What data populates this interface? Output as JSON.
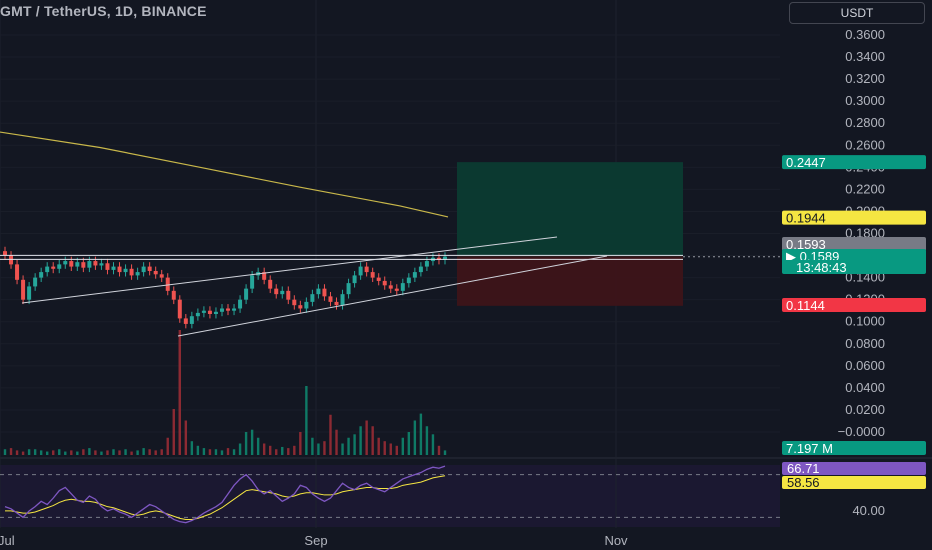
{
  "header": {
    "title": "GMT / TetherUS, 1D, BINANCE",
    "currency": "USDT"
  },
  "chart_data": {
    "type": "candlestick",
    "symbol": "GMT / TetherUS",
    "interval": "1D",
    "exchange": "BINANCE",
    "y_axis": {
      "ticks": [
        "0.3600",
        "0.3400",
        "0.3200",
        "0.3000",
        "0.2800",
        "0.2600",
        "0.2400",
        "0.2200",
        "0.2000",
        "0.1800",
        "0.1600",
        "0.1400",
        "0.1200",
        "0.1000",
        "0.0800",
        "0.0600",
        "0.0400",
        "0.0200",
        "−0.0000"
      ],
      "range": [
        0.0,
        0.37
      ]
    },
    "x_axis": {
      "labels": [
        "Jul",
        "Sep",
        "Nov"
      ]
    },
    "price_labels": [
      {
        "text": "0.2447",
        "kind": "target",
        "color": "#089981"
      },
      {
        "text": "0.1944",
        "kind": "moving_average",
        "color": "#f5e642"
      },
      {
        "text": "0.1593",
        "kind": "last_marker",
        "color": "#787b86"
      },
      {
        "text": "0.1589",
        "kind": "current",
        "color": "#089981"
      },
      {
        "text": "13:48:43",
        "kind": "countdown",
        "color": "#089981"
      },
      {
        "text": "0.1144",
        "kind": "stop",
        "color": "#f23645"
      },
      {
        "text": "7.197 M",
        "kind": "volume",
        "color": "#089981"
      }
    ],
    "moving_average": [
      {
        "x": 0,
        "y": 0.272
      },
      {
        "x": 100,
        "y": 0.258
      },
      {
        "x": 200,
        "y": 0.24
      },
      {
        "x": 300,
        "y": 0.222
      },
      {
        "x": 400,
        "y": 0.205
      },
      {
        "x": 448,
        "y": 0.195
      }
    ],
    "candles_close": [
      0.16,
      0.152,
      0.138,
      0.12,
      0.132,
      0.14,
      0.145,
      0.15,
      0.148,
      0.152,
      0.155,
      0.15,
      0.154,
      0.149,
      0.155,
      0.151,
      0.153,
      0.147,
      0.15,
      0.145,
      0.148,
      0.142,
      0.145,
      0.15,
      0.146,
      0.143,
      0.14,
      0.128,
      0.12,
      0.103,
      0.098,
      0.105,
      0.108,
      0.11,
      0.107,
      0.109,
      0.112,
      0.11,
      0.112,
      0.12,
      0.13,
      0.142,
      0.145,
      0.138,
      0.13,
      0.125,
      0.128,
      0.12,
      0.115,
      0.112,
      0.118,
      0.125,
      0.13,
      0.123,
      0.118,
      0.115,
      0.125,
      0.135,
      0.142,
      0.15,
      0.145,
      0.14,
      0.137,
      0.133,
      0.13,
      0.128,
      0.135,
      0.14,
      0.145,
      0.15,
      0.155,
      0.158,
      0.156,
      0.159
    ],
    "candle_x_start": 5,
    "candle_x_end": 445,
    "volume": [
      0.05,
      0.06,
      0.04,
      0.03,
      0.05,
      0.05,
      0.04,
      0.03,
      0.04,
      0.05,
      0.03,
      0.04,
      0.03,
      0.05,
      0.06,
      0.04,
      0.03,
      0.04,
      0.05,
      0.04,
      0.05,
      0.03,
      0.04,
      0.06,
      0.05,
      0.04,
      0.05,
      0.15,
      0.4,
      1.0,
      0.3,
      0.12,
      0.08,
      0.06,
      0.05,
      0.05,
      0.04,
      0.06,
      0.05,
      0.1,
      0.2,
      0.22,
      0.15,
      0.1,
      0.08,
      0.05,
      0.07,
      0.06,
      0.08,
      0.2,
      0.6,
      0.15,
      0.1,
      0.12,
      0.35,
      0.22,
      0.1,
      0.15,
      0.18,
      0.25,
      0.3,
      0.25,
      0.15,
      0.12,
      0.1,
      0.08,
      0.15,
      0.2,
      0.3,
      0.36,
      0.25,
      0.18,
      0.08,
      0.04
    ],
    "volume_max_label": "7.197 M",
    "rsi": {
      "value": "66.71",
      "ma_value": "58.56",
      "axis_label": "40.00",
      "line_color": "#7e57c2",
      "ma_color": "#f5e642"
    },
    "long_position": {
      "entry": 0.1593,
      "target": 0.2447,
      "stop": 0.1144,
      "profit_color": "#0b3b32",
      "loss_color": "#3d1419"
    },
    "drawings": [
      "rising wedge upper trendline",
      "rising wedge lower trendline",
      "horizontal resistance lines"
    ]
  }
}
